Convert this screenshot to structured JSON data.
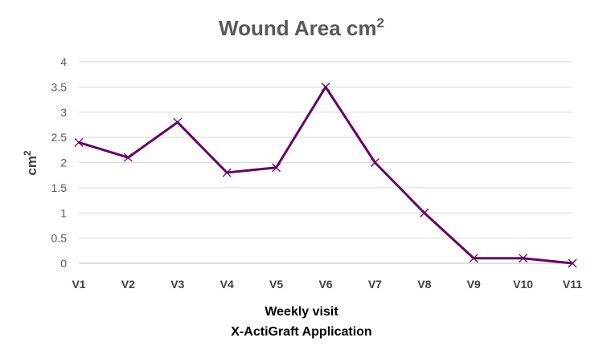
{
  "chart_data": {
    "type": "line",
    "title": "Wound Area cm",
    "title_superscript": "2",
    "ylabel": "cm",
    "ylabel_superscript": "2",
    "xlabel_line1": "Weekly visit",
    "xlabel_line2": "X-ActiGraft Application",
    "categories": [
      "V1",
      "V2",
      "V3",
      "V4",
      "V5",
      "V6",
      "V7",
      "V8",
      "V9",
      "V10",
      "V11"
    ],
    "series": [
      {
        "values": [
          2.4,
          2.1,
          2.8,
          1.8,
          1.9,
          3.5,
          2.0,
          1.0,
          0.1,
          0.1,
          0.0
        ],
        "color": "#660066",
        "marker": "x"
      }
    ],
    "ylim": [
      0,
      4
    ],
    "yticks": [
      "0",
      "0.5",
      "1",
      "1.5",
      "2",
      "2.5",
      "3",
      "3.5",
      "4"
    ],
    "grid": true,
    "legend": "none"
  }
}
